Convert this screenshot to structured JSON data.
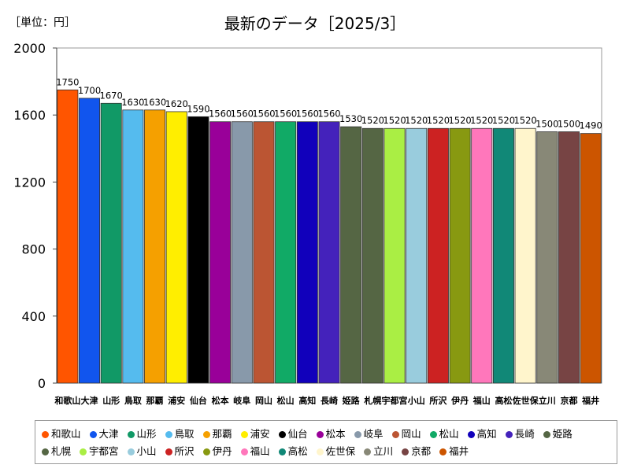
{
  "chart_data": {
    "type": "bar",
    "title": "最新のデータ［2025/3］",
    "unit_label": "［単位：円］",
    "categories": [
      "和歌山",
      "大津",
      "山形",
      "鳥取",
      "那覇",
      "浦安",
      "仙台",
      "松本",
      "岐阜",
      "岡山",
      "松山",
      "高知",
      "長崎",
      "姫路",
      "札幌",
      "宇都宮",
      "小山",
      "所沢",
      "伊丹",
      "福山",
      "高松",
      "佐世保",
      "立川",
      "京都",
      "福井"
    ],
    "values": [
      1750,
      1700,
      1670,
      1630,
      1630,
      1620,
      1590,
      1560,
      1560,
      1560,
      1560,
      1560,
      1560,
      1530,
      1520,
      1520,
      1520,
      1520,
      1520,
      1520,
      1520,
      1520,
      1500,
      1500,
      1490
    ],
    "colors": [
      "#ff5500",
      "#1155ee",
      "#119966",
      "#55bbee",
      "#f5a000",
      "#ffee00",
      "#000000",
      "#990099",
      "#8899aa",
      "#bb5533",
      "#11aa66",
      "#1100bb",
      "#4422bb",
      "#556644",
      "#556644",
      "#aaee44",
      "#99ccdd",
      "#cc2222",
      "#889911",
      "#ff77bb",
      "#118877",
      "#fff5cc",
      "#888877",
      "#774444",
      "#cc5500"
    ],
    "yticks": [
      0,
      400,
      800,
      1200,
      1600,
      2000
    ],
    "ylim": [
      0,
      2000
    ],
    "grid": false,
    "legend_position": "bottom"
  }
}
